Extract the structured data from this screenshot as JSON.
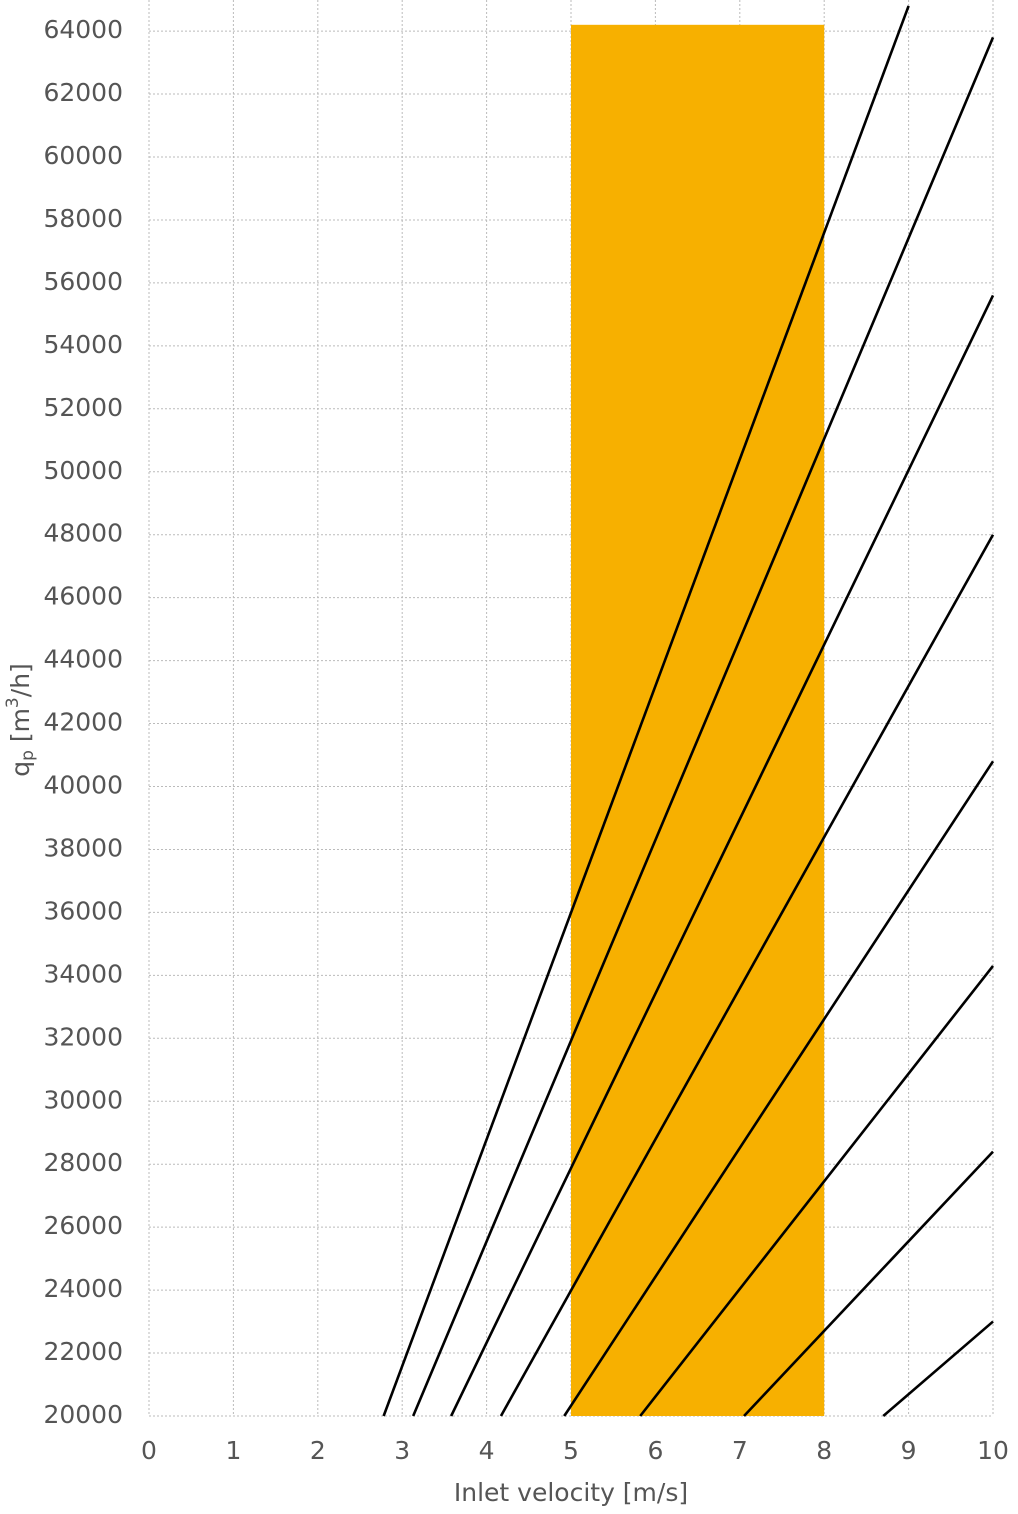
{
  "chart_data": {
    "type": "line",
    "xlabel": "Inlet velocity [m/s]",
    "ylabel": [
      "q",
      "p",
      " [m",
      "3",
      "/h]"
    ],
    "xlim": [
      0,
      10
    ],
    "ylim": [
      20000,
      64900
    ],
    "xticks": [
      0,
      1,
      2,
      3,
      4,
      5,
      6,
      7,
      8,
      9,
      10
    ],
    "yticks": [
      20000,
      22000,
      24000,
      26000,
      28000,
      30000,
      32000,
      34000,
      36000,
      38000,
      40000,
      42000,
      44000,
      46000,
      48000,
      50000,
      52000,
      54000,
      56000,
      58000,
      60000,
      62000,
      64000
    ],
    "grid": true,
    "band": {
      "x": [
        5,
        8
      ],
      "y": [
        20000,
        64200
      ],
      "color": "#f7b000"
    },
    "series": [
      {
        "color": "#000000",
        "x": [
          2.78,
          9.0
        ],
        "values": [
          20000,
          64800
        ]
      },
      {
        "color": "#000000",
        "x": [
          3.13,
          10
        ],
        "values": [
          20000,
          63800
        ]
      },
      {
        "color": "#000000",
        "x": [
          3.58,
          10
        ],
        "values": [
          20000,
          55600
        ]
      },
      {
        "color": "#000000",
        "x": [
          4.17,
          10
        ],
        "values": [
          20000,
          48000
        ]
      },
      {
        "color": "#000000",
        "x": [
          4.92,
          10
        ],
        "values": [
          20000,
          40800
        ]
      },
      {
        "color": "#000000",
        "x": [
          5.82,
          10
        ],
        "values": [
          20000,
          34300
        ]
      },
      {
        "color": "#000000",
        "x": [
          7.05,
          10
        ],
        "values": [
          20000,
          28400
        ]
      },
      {
        "color": "#000000",
        "x": [
          8.7,
          10
        ],
        "values": [
          20000,
          23000
        ]
      }
    ]
  }
}
